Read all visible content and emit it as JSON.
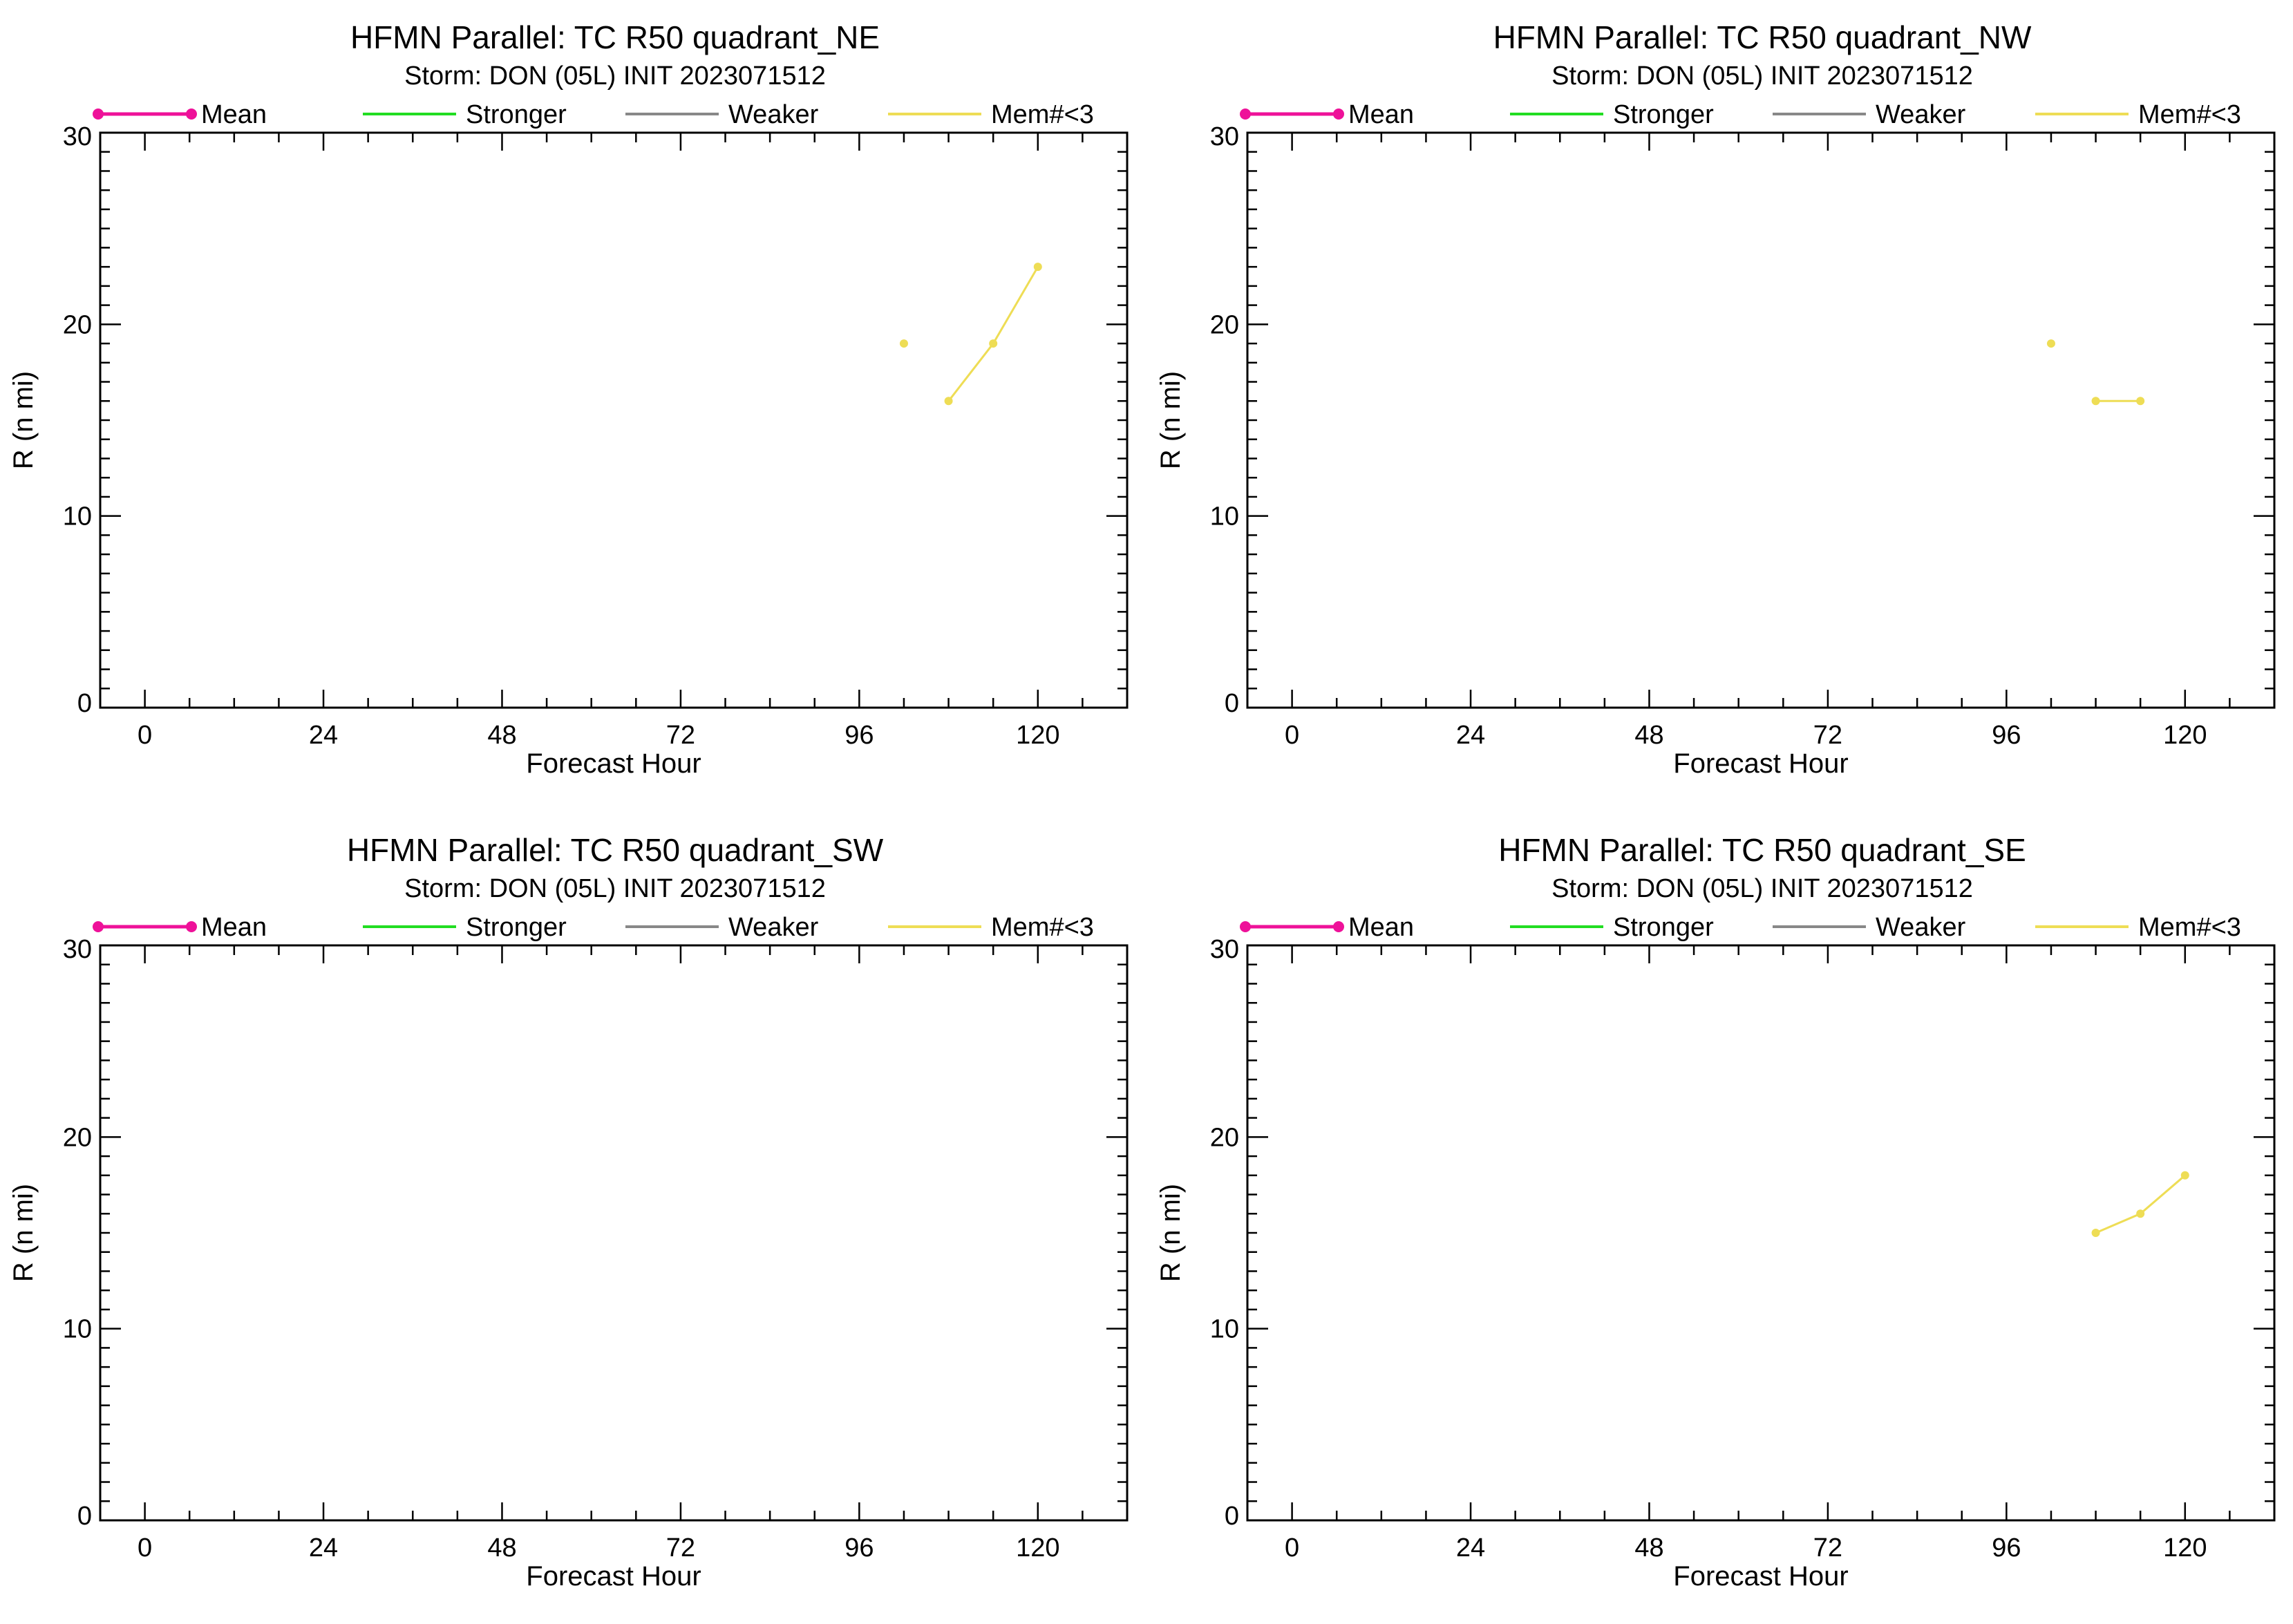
{
  "legend_labels": {
    "mean": "Mean",
    "stronger": "Stronger",
    "weaker": "Weaker",
    "mem": "Mem#<3"
  },
  "colors": {
    "mean": "#ee1199",
    "stronger": "#22dd22",
    "weaker": "#888888",
    "mem": "#eedd55",
    "axis": "#000000"
  },
  "chart_data": [
    {
      "type": "line",
      "title": "HFMN Parallel: TC  R50 quadrant_NE",
      "subtitle": "Storm: DON (05L) INIT 2023071512",
      "xlabel": "Forecast Hour",
      "ylabel": "R (n mi)",
      "xlim": [
        -6,
        132
      ],
      "ylim": [
        0,
        30
      ],
      "xticks": [
        "0",
        "24",
        "48",
        "72",
        "96",
        "120"
      ],
      "yticks": [
        "0",
        "10",
        "20",
        "30"
      ],
      "series": [
        {
          "name": "Mem#<3",
          "segments": [
            [
              [
                102,
                19
              ]
            ],
            [
              [
                108,
                16
              ],
              [
                114,
                19
              ],
              [
                120,
                23
              ]
            ]
          ]
        }
      ]
    },
    {
      "type": "line",
      "title": "HFMN Parallel: TC  R50 quadrant_NW",
      "subtitle": "Storm: DON (05L) INIT 2023071512",
      "xlabel": "Forecast Hour",
      "ylabel": "R (n mi)",
      "xlim": [
        -6,
        132
      ],
      "ylim": [
        0,
        30
      ],
      "xticks": [
        "0",
        "24",
        "48",
        "72",
        "96",
        "120"
      ],
      "yticks": [
        "0",
        "10",
        "20",
        "30"
      ],
      "series": [
        {
          "name": "Mem#<3",
          "segments": [
            [
              [
                102,
                19
              ]
            ],
            [
              [
                108,
                16
              ],
              [
                114,
                16
              ]
            ]
          ]
        }
      ]
    },
    {
      "type": "line",
      "title": "HFMN Parallel: TC  R50 quadrant_SW",
      "subtitle": "Storm: DON (05L) INIT 2023071512",
      "xlabel": "Forecast Hour",
      "ylabel": "R (n mi)",
      "xlim": [
        -6,
        132
      ],
      "ylim": [
        0,
        30
      ],
      "xticks": [
        "0",
        "24",
        "48",
        "72",
        "96",
        "120"
      ],
      "yticks": [
        "0",
        "10",
        "20",
        "30"
      ],
      "series": []
    },
    {
      "type": "line",
      "title": "HFMN Parallel: TC  R50 quadrant_SE",
      "subtitle": "Storm: DON (05L) INIT 2023071512",
      "xlabel": "Forecast Hour",
      "ylabel": "R (n mi)",
      "xlim": [
        -6,
        132
      ],
      "ylim": [
        0,
        30
      ],
      "xticks": [
        "0",
        "24",
        "48",
        "72",
        "96",
        "120"
      ],
      "yticks": [
        "0",
        "10",
        "20",
        "30"
      ],
      "series": [
        {
          "name": "Mem#<3",
          "segments": [
            [
              [
                108,
                15
              ],
              [
                114,
                16
              ],
              [
                120,
                18
              ]
            ]
          ]
        }
      ]
    }
  ]
}
